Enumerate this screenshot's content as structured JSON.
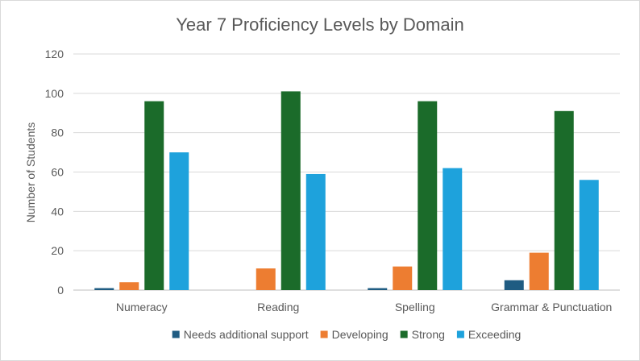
{
  "chart_data": {
    "type": "bar",
    "title": "Year 7 Proficiency Levels by Domain",
    "xlabel": "",
    "ylabel": "Number of Students",
    "ylim": [
      0,
      120
    ],
    "yticks": [
      0,
      20,
      40,
      60,
      80,
      100,
      120
    ],
    "grid": true,
    "legend_position": "bottom",
    "categories": [
      "Numeracy",
      "Reading",
      "Spelling",
      "Grammar & Punctuation"
    ],
    "series": [
      {
        "name": "Needs additional support",
        "color": "#1f5c82",
        "values": [
          1,
          0,
          1,
          5
        ]
      },
      {
        "name": "Developing",
        "color": "#ed7d31",
        "values": [
          4,
          11,
          12,
          19
        ]
      },
      {
        "name": "Strong",
        "color": "#1b6b2a",
        "values": [
          96,
          101,
          96,
          91
        ]
      },
      {
        "name": "Exceeding",
        "color": "#1ea2dc",
        "values": [
          70,
          59,
          62,
          56
        ]
      }
    ]
  }
}
